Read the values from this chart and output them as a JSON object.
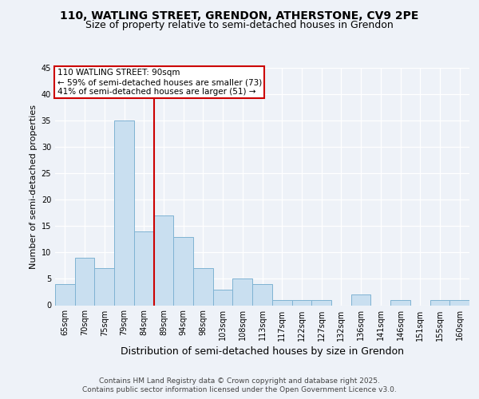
{
  "title": "110, WATLING STREET, GRENDON, ATHERSTONE, CV9 2PE",
  "subtitle": "Size of property relative to semi-detached houses in Grendon",
  "xlabel": "Distribution of semi-detached houses by size in Grendon",
  "ylabel": "Number of semi-detached properties",
  "categories": [
    "65sqm",
    "70sqm",
    "75sqm",
    "79sqm",
    "84sqm",
    "89sqm",
    "94sqm",
    "98sqm",
    "103sqm",
    "108sqm",
    "113sqm",
    "117sqm",
    "122sqm",
    "127sqm",
    "132sqm",
    "136sqm",
    "141sqm",
    "146sqm",
    "151sqm",
    "155sqm",
    "160sqm"
  ],
  "values": [
    4,
    9,
    7,
    35,
    14,
    17,
    13,
    7,
    3,
    5,
    4,
    1,
    1,
    1,
    0,
    2,
    0,
    1,
    0,
    1,
    1
  ],
  "bar_color": "#c9dff0",
  "bar_edge_color": "#7fb3d3",
  "annotation_title": "110 WATLING STREET: 90sqm",
  "annotation_line1": "← 59% of semi-detached houses are smaller (73)",
  "annotation_line2": "41% of semi-detached houses are larger (51) →",
  "annotation_box_color": "#ffffff",
  "annotation_box_edge_color": "#cc0000",
  "vline_color": "#cc0000",
  "vline_x": 4.5,
  "ylim": [
    0,
    45
  ],
  "yticks": [
    0,
    5,
    10,
    15,
    20,
    25,
    30,
    35,
    40,
    45
  ],
  "footer_line1": "Contains HM Land Registry data © Crown copyright and database right 2025.",
  "footer_line2": "Contains public sector information licensed under the Open Government Licence v3.0.",
  "bg_color": "#eef2f8",
  "plot_bg_color": "#eef2f8",
  "title_fontsize": 10,
  "subtitle_fontsize": 9,
  "axis_label_fontsize": 9,
  "ylabel_fontsize": 8,
  "tick_fontsize": 7,
  "footer_fontsize": 6.5,
  "annotation_fontsize": 7.5
}
